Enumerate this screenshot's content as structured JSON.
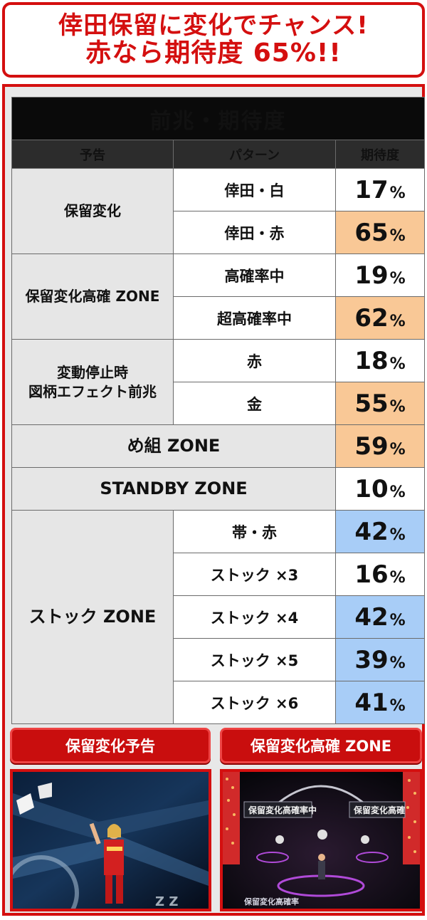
{
  "headline": {
    "line1": "倖田保留に変化でチャンス!",
    "line2": "赤なら期待度 65%!!"
  },
  "table": {
    "title": "前兆・期待度",
    "headers": [
      "予告",
      "パターン",
      "期待度"
    ],
    "rows": [
      {
        "category": "保留変化",
        "pattern": "倖田・白",
        "value": "17",
        "unit": "%",
        "highlight": "none"
      },
      {
        "category": "",
        "pattern": "倖田・赤",
        "value": "65",
        "unit": "%",
        "highlight": "orange"
      },
      {
        "category": "保留変化高確 ZONE",
        "pattern": "高確率中",
        "value": "19",
        "unit": "%",
        "highlight": "none"
      },
      {
        "category": "",
        "pattern": "超高確率中",
        "value": "62",
        "unit": "%",
        "highlight": "orange"
      },
      {
        "category": "変動停止時",
        "category_line2": "図柄エフェクト前兆",
        "pattern": "赤",
        "value": "18",
        "unit": "%",
        "highlight": "none"
      },
      {
        "category": "",
        "pattern": "金",
        "value": "55",
        "unit": "%",
        "highlight": "orange"
      },
      {
        "category": "め組 ZONE",
        "pattern": "",
        "value": "59",
        "unit": "%",
        "highlight": "orange"
      },
      {
        "category": "STANDBY ZONE",
        "pattern": "",
        "value": "10",
        "unit": "%",
        "highlight": "none"
      },
      {
        "category": "ストック ZONE",
        "pattern": "帯・赤",
        "value": "42",
        "unit": "%",
        "highlight": "blue"
      },
      {
        "category": "",
        "pattern": "ストック ×3",
        "value": "16",
        "unit": "%",
        "highlight": "none"
      },
      {
        "category": "",
        "pattern": "ストック ×4",
        "value": "42",
        "unit": "%",
        "highlight": "blue"
      },
      {
        "category": "",
        "pattern": "ストック ×5",
        "value": "39",
        "unit": "%",
        "highlight": "blue"
      },
      {
        "category": "",
        "pattern": "ストック ×6",
        "value": "41",
        "unit": "%",
        "highlight": "blue"
      }
    ]
  },
  "screenshots": {
    "left_label": "保留変化予告",
    "right_label": "保留変化高確 ZONE",
    "right_overlay_1": "保留変化高確率中",
    "right_overlay_2": "保留変化高確",
    "right_bottom_text": "保留変化高確率"
  },
  "colors": {
    "accent_red": "#d40f0f",
    "highlight_orange": "#f9c896",
    "highlight_blue": "#a8cdf7",
    "header_black": "#0a0a0a"
  }
}
